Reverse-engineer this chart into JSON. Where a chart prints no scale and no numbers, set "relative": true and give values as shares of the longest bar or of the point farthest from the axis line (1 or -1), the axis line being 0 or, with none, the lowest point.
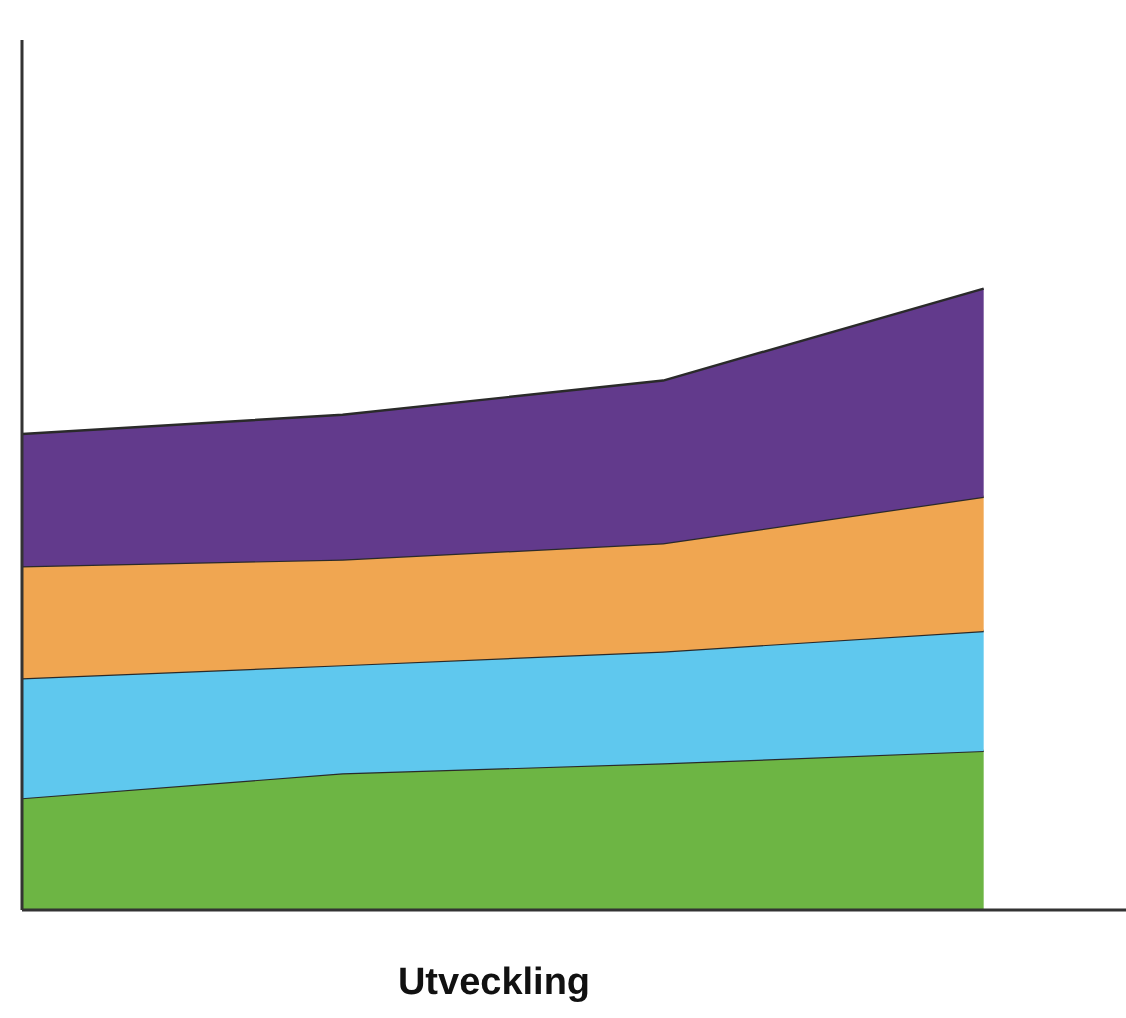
{
  "chart_data": {
    "type": "area",
    "relative": true,
    "stacked": true,
    "xlabel": "Utveckling",
    "categories": [
      null,
      null,
      null,
      null
    ],
    "series": [
      {
        "color": "#6db544",
        "values": [
          0.18,
          0.22,
          0.236,
          0.256
        ]
      },
      {
        "color": "#5fc8ee",
        "values": [
          0.193,
          0.174,
          0.18,
          0.193
        ]
      },
      {
        "color": "#f0a651",
        "values": [
          0.18,
          0.17,
          0.174,
          0.216
        ]
      },
      {
        "color": "#623a8c",
        "values": [
          0.213,
          0.233,
          0.262,
          0.335
        ]
      }
    ]
  }
}
